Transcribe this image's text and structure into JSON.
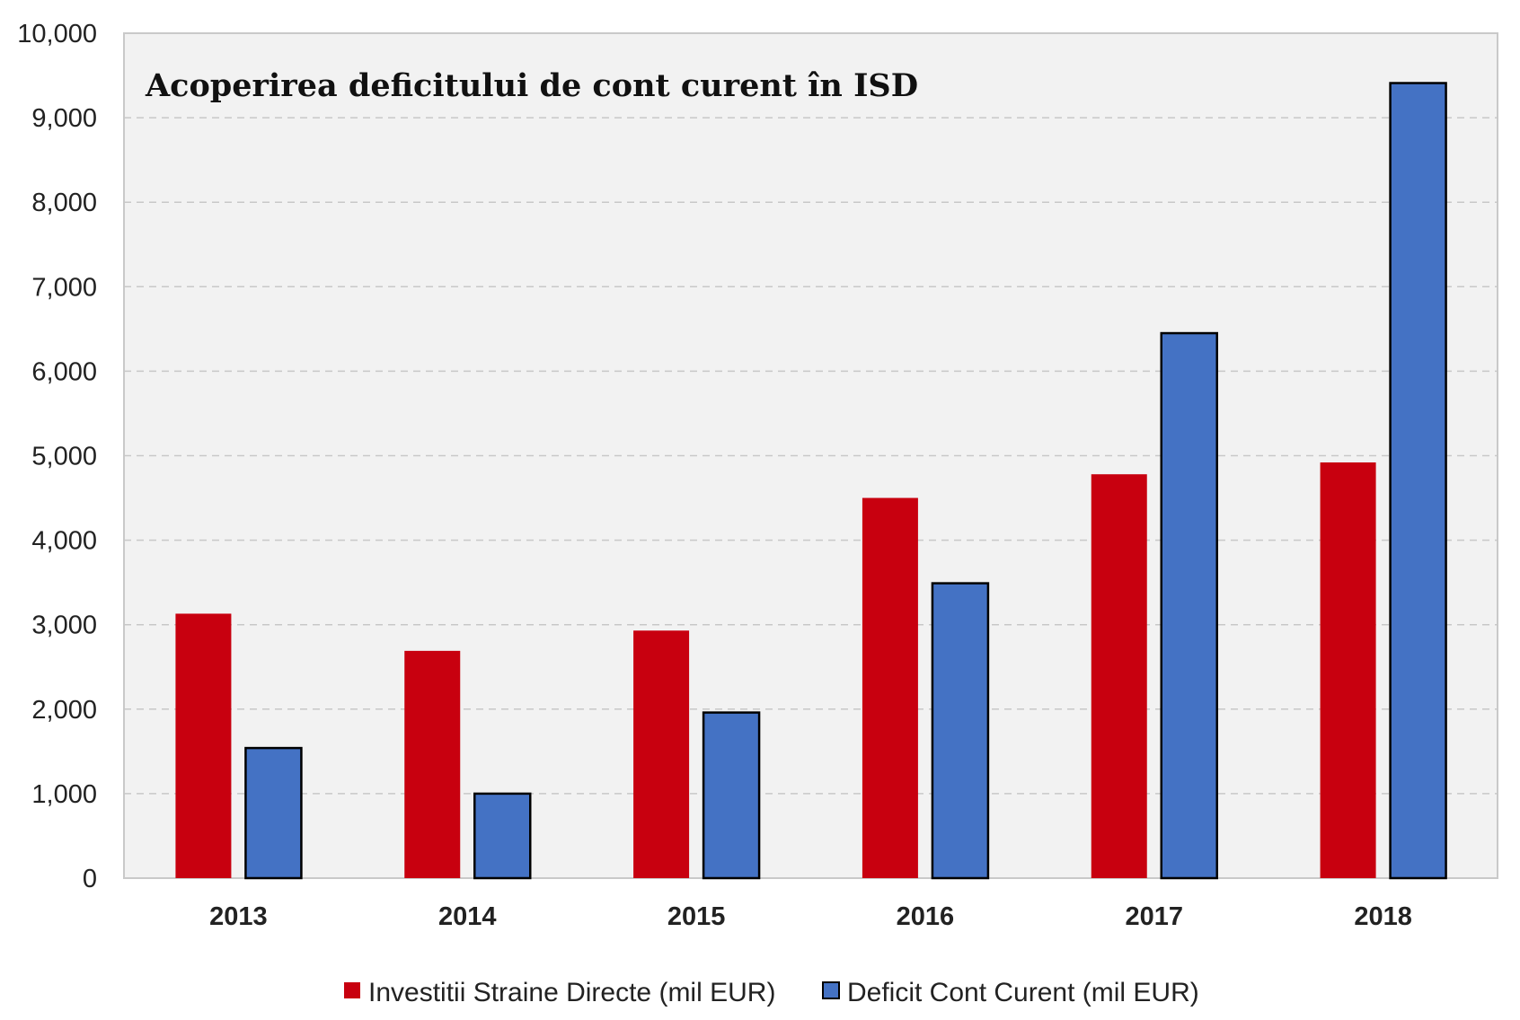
{
  "chart_data": {
    "type": "bar",
    "title": "Acoperirea deficitului de cont curent în ISD",
    "xlabel": "",
    "ylabel": "",
    "categories": [
      "2013",
      "2014",
      "2015",
      "2016",
      "2017",
      "2018"
    ],
    "series": [
      {
        "name": "Investitii Straine Directe (mil EUR)",
        "color": "#c8000f",
        "outline": false,
        "values": [
          3130,
          2690,
          2930,
          4500,
          4780,
          4920
        ]
      },
      {
        "name": "Deficit Cont Curent (mil EUR)",
        "color": "#4472c4",
        "outline": true,
        "values": [
          1540,
          1000,
          1960,
          3490,
          6450,
          9410
        ]
      }
    ],
    "ylim": [
      0,
      10000
    ],
    "yticks": [
      0,
      1000,
      2000,
      3000,
      4000,
      5000,
      6000,
      7000,
      8000,
      9000,
      10000
    ],
    "ytick_labels": [
      "0",
      "1,000",
      "2,000",
      "3,000",
      "4,000",
      "5,000",
      "6,000",
      "7,000",
      "8,000",
      "9,000",
      "10,000"
    ],
    "grid": true,
    "legend_position": "bottom-center",
    "plot_background": "#f2f2f2"
  }
}
